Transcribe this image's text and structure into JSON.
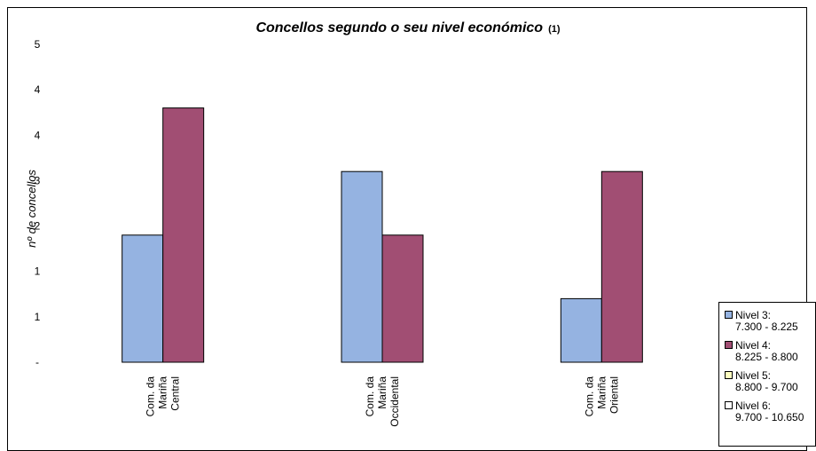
{
  "chart_data": {
    "type": "bar",
    "title": "Concellos segundo o seu nivel económico",
    "title_note": "(1)",
    "ylabel": "nº de concellos",
    "xlabel": "",
    "ylim": [
      0,
      5
    ],
    "y_tick_labels": [
      "-",
      "1",
      "1",
      "2",
      "3",
      "4",
      "4",
      "5"
    ],
    "categories": [
      "Com. da Mariña Central",
      "Com. da Mariña Occidental",
      "Com. da Mariña Oriental"
    ],
    "category_lines": [
      [
        "Com. da",
        "Mariña",
        "Central"
      ],
      [
        "Com. da",
        "Mariña",
        "Occidental"
      ],
      [
        "Com. da",
        "Mariña",
        "Oriental"
      ]
    ],
    "series": [
      {
        "name": "Nivel 3:",
        "range": "7.300 - 8.225",
        "color": "#95b3e1",
        "values": [
          2,
          3,
          1
        ]
      },
      {
        "name": "Nivel 4:",
        "range": "8.225 - 8.800",
        "color": "#a14e73",
        "values": [
          4,
          2,
          3
        ]
      },
      {
        "name": "Nivel 5:",
        "range": "8.800 - 9.700",
        "color": "#ffffc0",
        "values": [
          0,
          0,
          0
        ]
      },
      {
        "name": "Nivel 6:",
        "range": "9.700 - 10.650",
        "color": "#ffffff",
        "values": [
          0,
          0,
          0
        ]
      }
    ],
    "legend_position": "bottom-right",
    "grid": false
  }
}
